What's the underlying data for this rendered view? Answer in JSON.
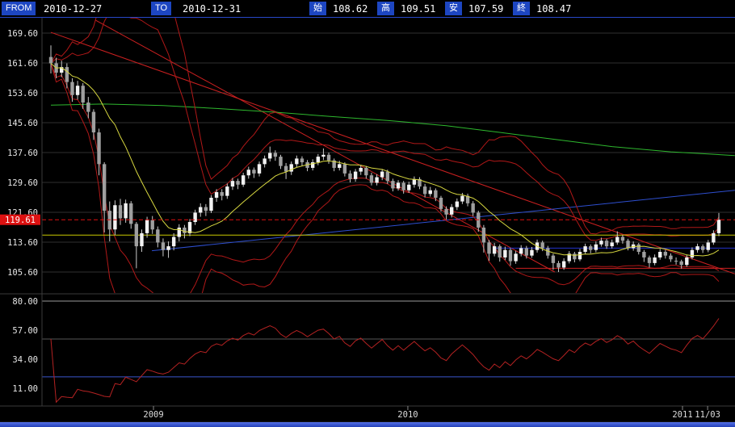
{
  "header": {
    "from_label": "FROM",
    "from_value": "2010-12-27",
    "to_label": "TO",
    "to_value": "2010-12-31",
    "ohlc": [
      {
        "label": "始",
        "value": "108.62"
      },
      {
        "label": "高",
        "value": "109.51"
      },
      {
        "label": "安",
        "value": "107.59"
      },
      {
        "label": "終",
        "value": "108.47"
      }
    ]
  },
  "colors": {
    "header_badge": "#1d46c2",
    "grid": "#303030",
    "frame": "#3a3a3a",
    "axis_text": "#e6e6e6",
    "candle_up": "#f2f2f2",
    "candle_down": "#9f9f9f",
    "wick": "#c9c9c9",
    "ma_long_green": "#2eb82e",
    "ma_mid_yellow": "#d8d840",
    "band_red": "#b01818",
    "trend_red": "#cc2020",
    "trend_blue": "#2e4fd0",
    "hline_yellow": "#c8c800",
    "hline_navy": "#2233cc",
    "hline_support_red": "#cc2020",
    "last_price_red": "#dd1111",
    "rsi_red": "#b42222",
    "tick_text": "#dddddd",
    "scrollbar_blue": "#2e4ec9"
  },
  "chart_data": {
    "type": "candlestick",
    "title": "",
    "price_panel": {
      "ylim": [
        105.6,
        169.6
      ],
      "y_ticks": [
        "169.60",
        "161.60",
        "153.60",
        "145.60",
        "137.60",
        "129.60",
        "121.60",
        "113.60",
        "105.60"
      ],
      "x_ticks": [
        {
          "label": "2009",
          "i": 19.2
        },
        {
          "label": "2010",
          "i": 66.8
        },
        {
          "label": "2011",
          "i": 118.2
        },
        {
          "label": "11/03",
          "i": 122.9
        }
      ],
      "last_price": 119.61,
      "candles": [
        [
          163.2,
          166.3,
          158.8,
          161.5
        ],
        [
          161.5,
          163.0,
          157.5,
          159.0
        ],
        [
          159.0,
          162.2,
          157.8,
          160.5
        ],
        [
          160.5,
          161.5,
          154.8,
          156.5
        ],
        [
          156.5,
          157.5,
          151.2,
          153.0
        ],
        [
          153.0,
          156.8,
          151.8,
          155.5
        ],
        [
          155.5,
          156.2,
          149.3,
          151.0
        ],
        [
          151.0,
          152.5,
          146.8,
          148.5
        ],
        [
          148.5,
          149.2,
          141.0,
          143.0
        ],
        [
          143.0,
          144.0,
          131.5,
          134.5
        ],
        [
          134.5,
          135.0,
          116.2,
          122.0
        ],
        [
          122.0,
          124.5,
          113.8,
          117.0
        ],
        [
          117.0,
          124.8,
          115.5,
          123.5
        ],
        [
          123.5,
          125.2,
          118.2,
          120.0
        ],
        [
          120.0,
          125.0,
          118.8,
          124.0
        ],
        [
          124.0,
          124.6,
          117.2,
          118.5
        ],
        [
          118.5,
          119.0,
          106.6,
          112.5
        ],
        [
          112.5,
          117.0,
          111.0,
          116.0
        ],
        [
          116.0,
          120.4,
          114.8,
          119.5
        ],
        [
          119.5,
          120.6,
          115.8,
          117.0
        ],
        [
          117.0,
          117.8,
          112.2,
          113.5
        ],
        [
          113.5,
          114.6,
          109.8,
          111.5
        ],
        [
          111.5,
          113.8,
          109.4,
          112.5
        ],
        [
          112.5,
          116.0,
          111.4,
          115.0
        ],
        [
          115.0,
          118.4,
          113.8,
          117.5
        ],
        [
          117.5,
          118.2,
          114.6,
          116.0
        ],
        [
          116.0,
          119.8,
          115.2,
          119.0
        ],
        [
          119.0,
          122.3,
          118.2,
          121.5
        ],
        [
          121.5,
          124.0,
          120.4,
          123.0
        ],
        [
          123.0,
          123.8,
          120.6,
          122.0
        ],
        [
          122.0,
          126.2,
          121.4,
          125.5
        ],
        [
          125.5,
          127.8,
          124.4,
          127.0
        ],
        [
          127.0,
          127.8,
          124.8,
          126.0
        ],
        [
          126.0,
          129.3,
          125.2,
          128.5
        ],
        [
          128.5,
          130.8,
          127.6,
          130.0
        ],
        [
          130.0,
          130.6,
          127.8,
          129.0
        ],
        [
          129.0,
          132.2,
          128.4,
          131.5
        ],
        [
          131.5,
          133.8,
          130.6,
          133.0
        ],
        [
          133.0,
          133.6,
          130.8,
          132.0
        ],
        [
          132.0,
          135.2,
          131.2,
          134.5
        ],
        [
          134.5,
          136.8,
          133.6,
          136.0
        ],
        [
          136.0,
          139.2,
          135.2,
          137.5
        ],
        [
          137.5,
          138.2,
          135.4,
          136.5
        ],
        [
          136.5,
          137.0,
          133.2,
          134.0
        ],
        [
          134.0,
          134.8,
          130.5,
          132.5
        ],
        [
          132.5,
          135.2,
          131.6,
          134.5
        ],
        [
          134.5,
          136.8,
          133.6,
          136.0
        ],
        [
          136.0,
          136.6,
          134.0,
          135.0
        ],
        [
          135.0,
          135.6,
          132.6,
          133.5
        ],
        [
          133.5,
          135.8,
          132.8,
          135.0
        ],
        [
          135.0,
          137.2,
          134.2,
          136.5
        ],
        [
          136.5,
          138.7,
          135.6,
          137.0
        ],
        [
          137.0,
          137.6,
          134.6,
          135.5
        ],
        [
          135.5,
          136.0,
          132.6,
          133.5
        ],
        [
          133.5,
          135.4,
          132.8,
          134.5
        ],
        [
          134.5,
          135.0,
          131.2,
          132.0
        ],
        [
          132.0,
          132.8,
          129.6,
          130.5
        ],
        [
          130.5,
          133.2,
          129.8,
          132.5
        ],
        [
          132.5,
          134.3,
          131.6,
          133.5
        ],
        [
          133.5,
          134.0,
          130.6,
          131.5
        ],
        [
          131.5,
          132.2,
          128.8,
          129.5
        ],
        [
          129.5,
          131.8,
          128.8,
          131.0
        ],
        [
          131.0,
          133.2,
          130.2,
          132.5
        ],
        [
          132.5,
          133.0,
          129.2,
          130.0
        ],
        [
          130.0,
          130.6,
          127.2,
          128.0
        ],
        [
          128.0,
          130.2,
          127.4,
          129.5
        ],
        [
          129.5,
          130.0,
          126.6,
          127.5
        ],
        [
          127.5,
          129.8,
          126.8,
          129.0
        ],
        [
          129.0,
          131.2,
          128.2,
          130.5
        ],
        [
          130.5,
          131.0,
          127.8,
          128.5
        ],
        [
          128.5,
          129.2,
          125.6,
          126.5
        ],
        [
          126.5,
          128.4,
          125.8,
          127.5
        ],
        [
          127.5,
          128.0,
          124.6,
          125.5
        ],
        [
          125.5,
          126.0,
          121.8,
          122.5
        ],
        [
          122.5,
          123.2,
          119.6,
          121.0
        ],
        [
          121.0,
          123.8,
          120.2,
          123.0
        ],
        [
          123.0,
          125.3,
          122.2,
          124.5
        ],
        [
          124.5,
          126.8,
          123.8,
          126.0
        ],
        [
          126.0,
          126.6,
          123.2,
          124.0
        ],
        [
          124.0,
          124.6,
          120.6,
          121.5
        ],
        [
          121.5,
          122.0,
          116.4,
          117.5
        ],
        [
          117.5,
          118.2,
          110.8,
          113.5
        ],
        [
          113.5,
          114.2,
          108.6,
          110.5
        ],
        [
          110.5,
          113.4,
          109.8,
          112.5
        ],
        [
          112.5,
          113.0,
          108.4,
          109.5
        ],
        [
          109.5,
          112.4,
          108.8,
          111.5
        ],
        [
          111.5,
          112.0,
          107.3,
          108.5
        ],
        [
          108.5,
          111.3,
          107.8,
          110.5
        ],
        [
          110.5,
          112.8,
          109.8,
          112.0
        ],
        [
          112.0,
          112.6,
          109.2,
          110.0
        ],
        [
          110.0,
          112.3,
          109.4,
          111.5
        ],
        [
          111.5,
          114.3,
          110.8,
          113.5
        ],
        [
          113.5,
          114.0,
          111.2,
          112.0
        ],
        [
          112.0,
          112.6,
          109.2,
          110.0
        ],
        [
          110.0,
          110.5,
          106.2,
          108.0
        ],
        [
          108.0,
          108.6,
          105.6,
          106.8
        ],
        [
          106.8,
          109.3,
          106.2,
          108.5
        ],
        [
          108.5,
          111.2,
          107.9,
          110.5
        ],
        [
          110.5,
          111.0,
          108.2,
          109.0
        ],
        [
          109.0,
          111.8,
          108.5,
          111.0
        ],
        [
          111.0,
          113.2,
          110.4,
          112.5
        ],
        [
          112.5,
          113.0,
          110.6,
          111.5
        ],
        [
          111.5,
          113.8,
          110.9,
          113.0
        ],
        [
          113.0,
          114.8,
          112.4,
          114.0
        ],
        [
          114.0,
          114.5,
          111.8,
          112.5
        ],
        [
          112.5,
          114.3,
          111.9,
          113.5
        ],
        [
          113.5,
          116.5,
          112.9,
          115.0
        ],
        [
          115.0,
          115.5,
          113.2,
          114.0
        ],
        [
          114.0,
          114.5,
          111.4,
          112.0
        ],
        [
          112.0,
          113.8,
          111.3,
          113.0
        ],
        [
          113.0,
          113.4,
          110.3,
          111.0
        ],
        [
          111.0,
          111.5,
          108.3,
          109.5
        ],
        [
          109.5,
          110.0,
          106.8,
          108.0
        ],
        [
          108.0,
          110.3,
          107.4,
          109.5
        ],
        [
          109.5,
          111.8,
          108.9,
          111.0
        ],
        [
          111.0,
          111.5,
          109.2,
          110.0
        ],
        [
          110.0,
          110.6,
          108.3,
          109.0
        ],
        [
          108.62,
          109.51,
          107.59,
          108.47
        ],
        [
          108.47,
          108.9,
          106.5,
          107.5
        ],
        [
          107.5,
          110.2,
          107.0,
          109.5
        ],
        [
          109.5,
          112.2,
          109.0,
          111.5
        ],
        [
          111.5,
          113.2,
          110.8,
          112.5
        ],
        [
          112.5,
          113.0,
          110.7,
          111.5
        ],
        [
          111.5,
          114.2,
          110.9,
          113.5
        ],
        [
          113.5,
          116.8,
          112.9,
          116.0
        ],
        [
          116.0,
          121.4,
          115.2,
          119.61
        ]
      ],
      "ma_long_points": [
        [
          0,
          150.3
        ],
        [
          10,
          150.6
        ],
        [
          21,
          150.2
        ],
        [
          31,
          149.4
        ],
        [
          42,
          148.4
        ],
        [
          52,
          147.3
        ],
        [
          63,
          146.2
        ],
        [
          74,
          144.8
        ],
        [
          84,
          143.0
        ],
        [
          95,
          141.0
        ],
        [
          105,
          139.2
        ],
        [
          116,
          137.8
        ],
        [
          128,
          136.8
        ]
      ],
      "trendlines": [
        {
          "i1": 0,
          "p1": 169.8,
          "i2": 128,
          "p2": 105.1,
          "color_key": "trend_red"
        },
        {
          "i1": 8.3,
          "p1": 173.1,
          "i2": 94.3,
          "p2": 105.6,
          "color_key": "trend_red"
        },
        {
          "i1": 18.9,
          "p1": 111.3,
          "i2": 128,
          "p2": 127.5,
          "color_key": "trend_blue"
        }
      ],
      "h_lines": [
        {
          "p": 115.5,
          "color_key": "hline_yellow"
        },
        {
          "p": 112.0,
          "i1": 83,
          "color_key": "hline_navy"
        },
        {
          "p": 106.6,
          "i1": 87,
          "color_key": "hline_support_red"
        }
      ],
      "indicators": {
        "ma_mid_period": 13,
        "band_period": 21,
        "band_sigmas": [
          2,
          3
        ]
      }
    },
    "oscillator_panel": {
      "indicator": "RSI",
      "rsi_period": 14,
      "ylim": [
        5,
        85
      ],
      "y_ticks": [
        "80.00",
        "57.00",
        "34.00",
        "11.00"
      ],
      "guides": [
        {
          "v": 80,
          "color": "#9a9a9a"
        },
        {
          "v": 50,
          "color": "#565656"
        },
        {
          "v": 20,
          "color": "#3a55cc"
        }
      ]
    }
  }
}
